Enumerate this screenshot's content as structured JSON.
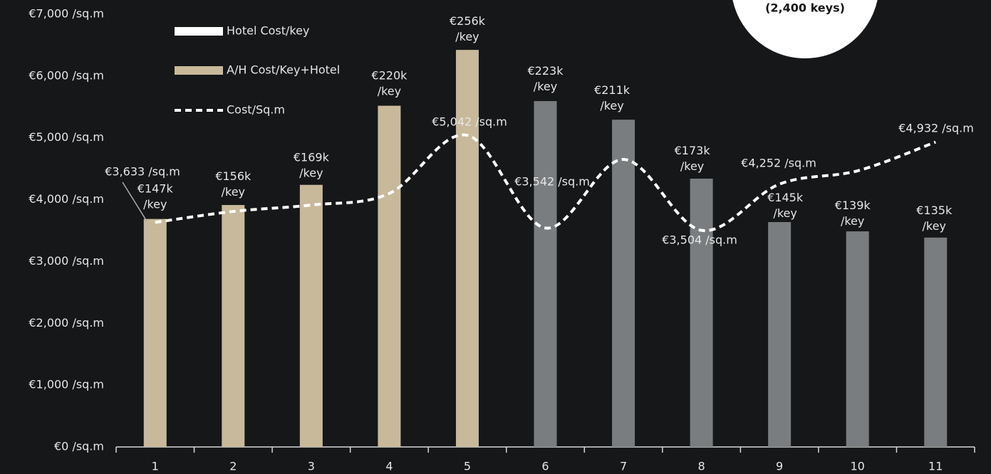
{
  "chart_data": {
    "type": "bar",
    "categories": [
      "1",
      "2",
      "3",
      "4",
      "5",
      "6",
      "7",
      "8",
      "9",
      "10",
      "11"
    ],
    "series": [
      {
        "name": "A/H Cost/Key+Hotel",
        "color": "#c8b99a",
        "axis": "y2",
        "values": [
          147,
          156,
          169,
          220,
          256,
          null,
          null,
          null,
          null,
          null,
          null
        ],
        "value_labels": [
          "€147k /key",
          "€156k /key",
          "€169k /key",
          "€220k /key",
          "€256k /key",
          null,
          null,
          null,
          null,
          null,
          null
        ]
      },
      {
        "name": "Hotel Cost/key",
        "color": "#7a7d7f",
        "legend_color": "#ffffff",
        "axis": "y2",
        "values": [
          null,
          null,
          null,
          null,
          null,
          223,
          211,
          173,
          145,
          139,
          135
        ],
        "value_labels": [
          null,
          null,
          null,
          null,
          null,
          "€223k /key",
          "€211k /key",
          "€173k /key",
          "€145k /key",
          "€139k /key",
          "€135k /key"
        ]
      },
      {
        "name": "Cost/Sq.m",
        "type": "line",
        "color": "#ffffff",
        "dashed": true,
        "smooth": true,
        "values": [
          3633,
          3810,
          3914,
          4100,
          5042,
          3542,
          4651,
          3504,
          4252,
          4467,
          4932
        ],
        "value_labels": [
          "€3,633 /sq.m",
          null,
          null,
          null,
          "€5,042 /sq.m",
          "€3,542 /sq.m",
          null,
          "€3,504 /sq.m",
          "€4,252 /sq.m",
          null,
          "€4,932 /sq.m"
        ]
      }
    ],
    "ylim": [
      0,
      7000
    ],
    "yticks": [
      {
        "value": 0,
        "label": "€0 /sq.m"
      },
      {
        "value": 1000,
        "label": "€1,000 /sq.m"
      },
      {
        "value": 2000,
        "label": "€2,000 /sq.m"
      },
      {
        "value": 3000,
        "label": "€3,000 /sq.m"
      },
      {
        "value": 4000,
        "label": "€4,000 /sq.m"
      },
      {
        "value": 5000,
        "label": "€5,000 /sq.m"
      },
      {
        "value": 6000,
        "label": "€6,000 /sq.m"
      },
      {
        "value": 7000,
        "label": "€7,000 /sq.m"
      }
    ],
    "y2lim": [
      0,
      279
    ],
    "grid": false,
    "legend": "top-left",
    "annotation": "(2,400 keys)"
  }
}
